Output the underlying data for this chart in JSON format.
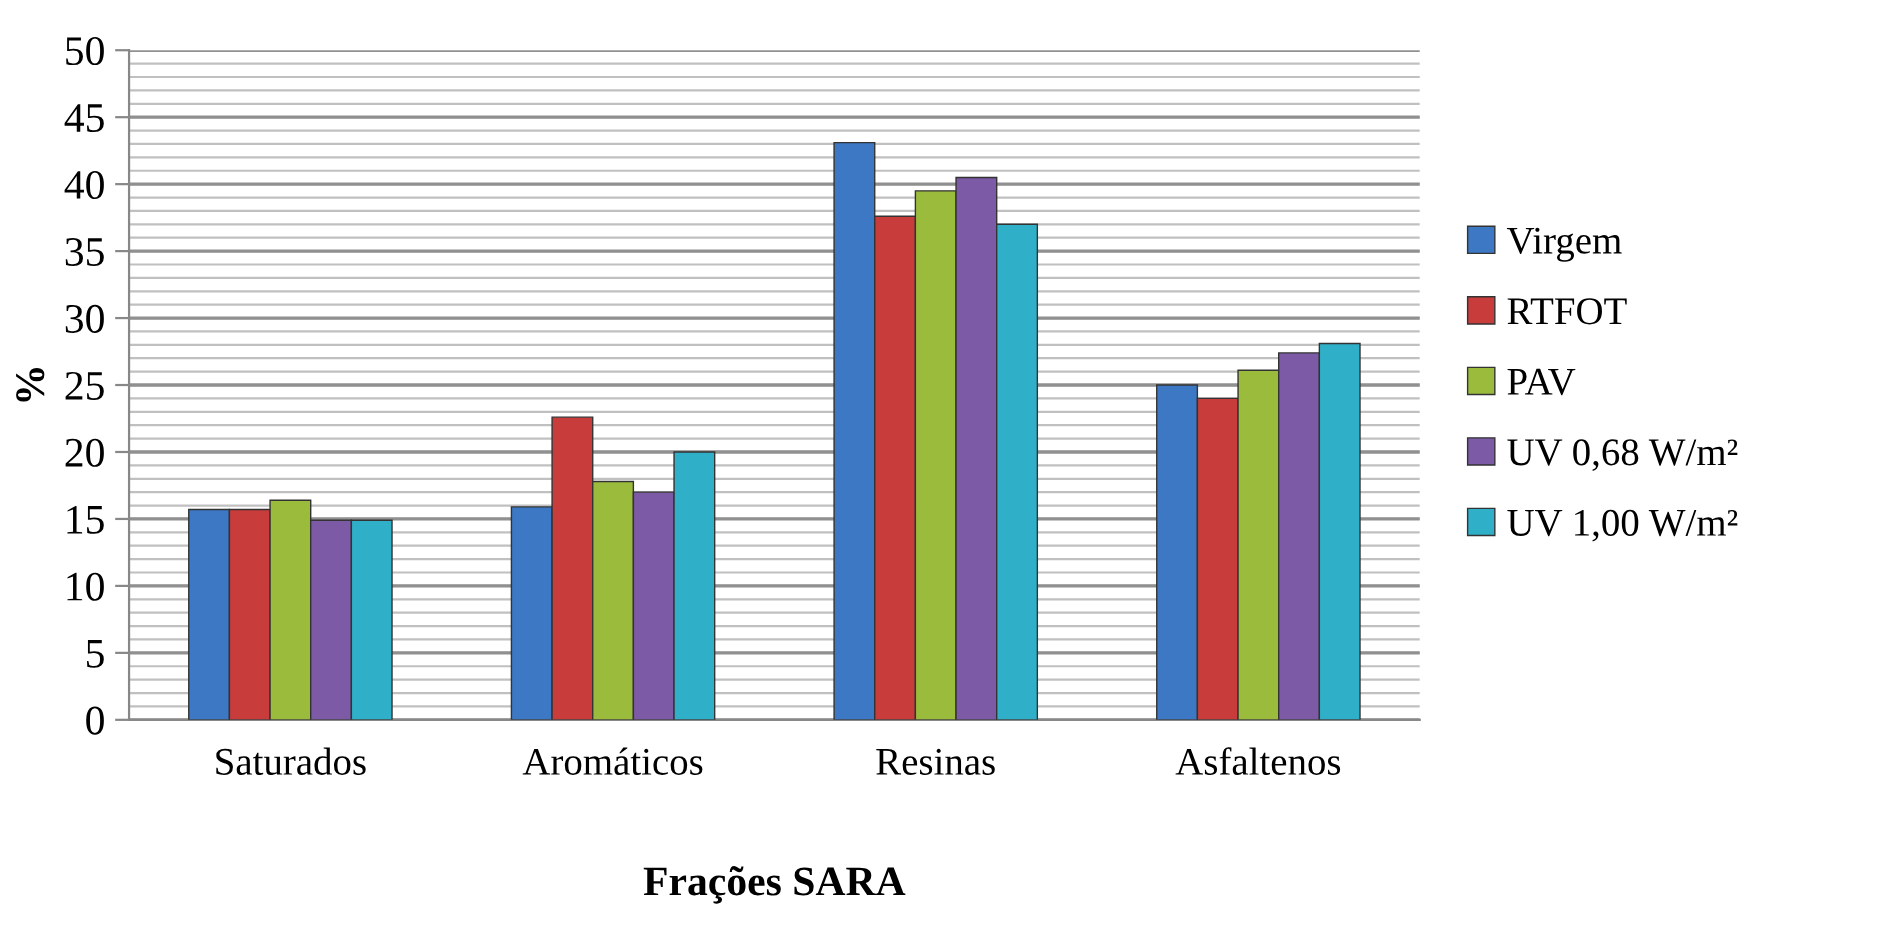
{
  "chart_data": {
    "type": "bar",
    "xlabel": "Frações SARA",
    "ylabel": "%",
    "categories": [
      "Saturados",
      "Aromáticos",
      "Resinas",
      "Asfaltenos"
    ],
    "series": [
      {
        "name": "Virgem",
        "color": "#3c78c3",
        "values": [
          15.7,
          15.9,
          43.1,
          25.0
        ]
      },
      {
        "name": "RTFOT",
        "color": "#c83c3c",
        "values": [
          15.7,
          22.6,
          37.6,
          24.0
        ]
      },
      {
        "name": "PAV",
        "color": "#9bbb3c",
        "values": [
          16.4,
          17.8,
          39.5,
          26.1
        ]
      },
      {
        "name": "UV 0,68 W/m²",
        "color": "#7d5aa5",
        "values": [
          14.9,
          17.0,
          40.5,
          27.4
        ]
      },
      {
        "name": "UV 1,00 W/m²",
        "color": "#30b0c8",
        "values": [
          14.9,
          20.0,
          37.0,
          28.1
        ]
      }
    ],
    "ylim": [
      0,
      50
    ],
    "yticks": [
      0,
      5,
      10,
      15,
      20,
      25,
      30,
      35,
      40,
      45,
      50
    ],
    "grid": "y",
    "legend": "right"
  }
}
